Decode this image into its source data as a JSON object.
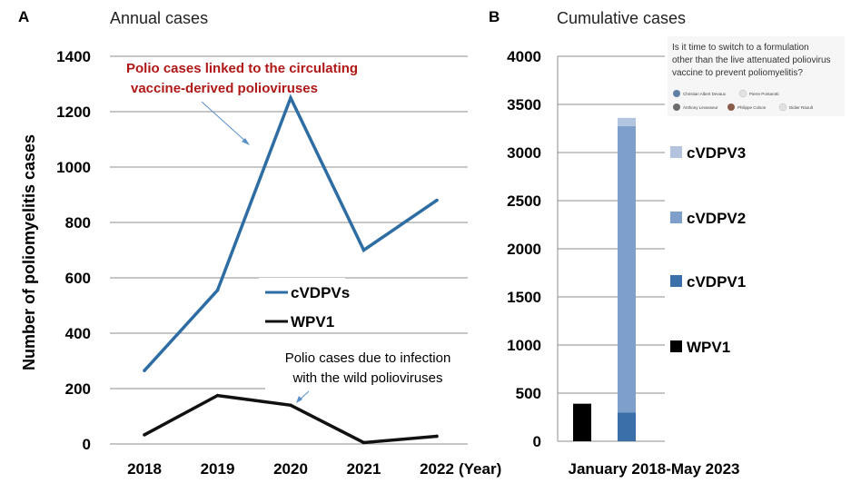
{
  "chart_data": [
    {
      "type": "line",
      "panel": "A",
      "title": "Annual cases",
      "ylabel": "Number of poliomyelitis cases",
      "xunit": "(Year)",
      "categories": [
        "2018",
        "2019",
        "2020",
        "2021",
        "2022"
      ],
      "ylim": [
        0,
        1400
      ],
      "yticks": [
        "0",
        "200",
        "400",
        "600",
        "800",
        "1000",
        "1200",
        "1400"
      ],
      "grid": true,
      "series": [
        {
          "name": "cVDPVs",
          "color": "#2e6da4",
          "values": [
            265,
            555,
            1250,
            700,
            880
          ]
        },
        {
          "name": "WPV1",
          "color": "#111111",
          "values": [
            33,
            175,
            140,
            5,
            28
          ]
        }
      ],
      "annotations": [
        {
          "lines": [
            "Polio cases linked to the circulating",
            "vaccine-derived polioviruses"
          ],
          "color": "#b01818"
        },
        {
          "lines": [
            "Polio cases due to infection",
            "with the wild polioviruses"
          ],
          "color": "#000000"
        }
      ]
    },
    {
      "type": "bar",
      "panel": "B",
      "title": "Cumulative cases",
      "xlabel": "January 2018-May 2023",
      "ylim": [
        0,
        4000
      ],
      "yticks": [
        "0",
        "500",
        "1000",
        "1500",
        "2000",
        "2500",
        "3000",
        "3500",
        "4000"
      ],
      "grid": true,
      "bars": [
        {
          "name": "WPV1",
          "segments": [
            {
              "name": "WPV1",
              "value": 390,
              "color": "#000000"
            }
          ]
        },
        {
          "name": "cVDPVs",
          "segments": [
            {
              "name": "cVDPV1",
              "value": 300,
              "color": "#3a6faa"
            },
            {
              "name": "cVDPV2",
              "value": 2975,
              "color": "#7e9ecb"
            },
            {
              "name": "cVDPV3",
              "value": 85,
              "color": "#b3c4df"
            }
          ]
        }
      ],
      "legend": [
        {
          "name": "cVDPV3",
          "color": "#b3c4df"
        },
        {
          "name": "cVDPV2",
          "color": "#7e9ecb"
        },
        {
          "name": "cVDPV1",
          "color": "#3a6faa"
        },
        {
          "name": "WPV1",
          "color": "#000000"
        }
      ]
    }
  ],
  "paper_card": {
    "title_lines": [
      "Is it time to switch to a formulation",
      "other than the live attenuated poliovirus",
      "vaccine to prevent poliomyelitis?"
    ],
    "authors": [
      "Christian Albert Devaux",
      "Pierre Pontarotti",
      "Anthony Levasseur",
      "Philippe Colson",
      "Didier Raoult"
    ]
  }
}
